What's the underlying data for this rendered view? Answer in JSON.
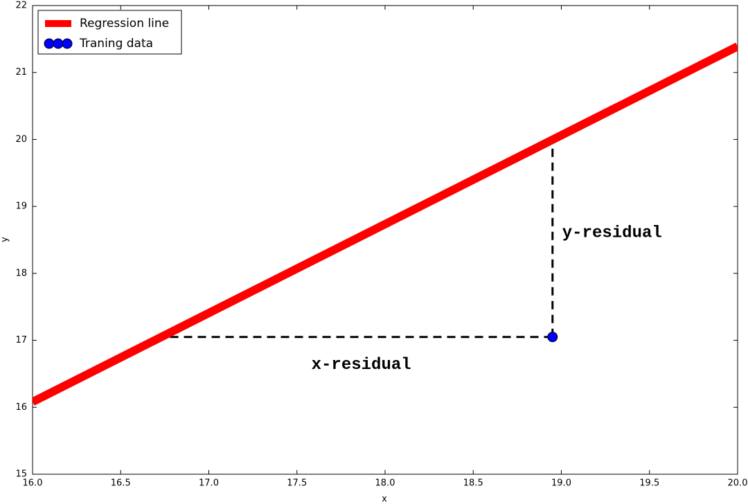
{
  "chart_data": {
    "type": "line",
    "xlabel": "x",
    "ylabel": "y",
    "xlim": [
      16,
      20
    ],
    "ylim": [
      15,
      22
    ],
    "xticks": [
      {
        "value": 16,
        "label": "16.0"
      },
      16.5,
      {
        "value": 17,
        "label": "17.0"
      },
      17.5,
      {
        "value": 18,
        "label": "18.0"
      },
      18.5,
      {
        "value": 19,
        "label": "19.0"
      },
      19.5,
      {
        "value": 20,
        "label": "20.0"
      }
    ],
    "yticks": [
      15,
      16,
      17,
      18,
      19,
      20,
      21,
      22
    ],
    "grid": false,
    "legend": "upper left",
    "series": [
      {
        "name": "Regression line",
        "kind": "line",
        "color": "#ff0000",
        "x": [
          16,
          20
        ],
        "values": [
          16.08,
          21.39
        ]
      },
      {
        "name": "Traning data",
        "kind": "scatter",
        "color": "#0000ff",
        "x": [
          18.95
        ],
        "values": [
          17.05
        ]
      }
    ],
    "annotations": [
      {
        "text": "x-residual",
        "x": [
          16.78,
          18.95
        ],
        "y": [
          17.05,
          17.05
        ]
      },
      {
        "text": "y-residual",
        "x": [
          18.95,
          18.95
        ],
        "y": [
          17.05,
          20.0
        ]
      }
    ]
  }
}
